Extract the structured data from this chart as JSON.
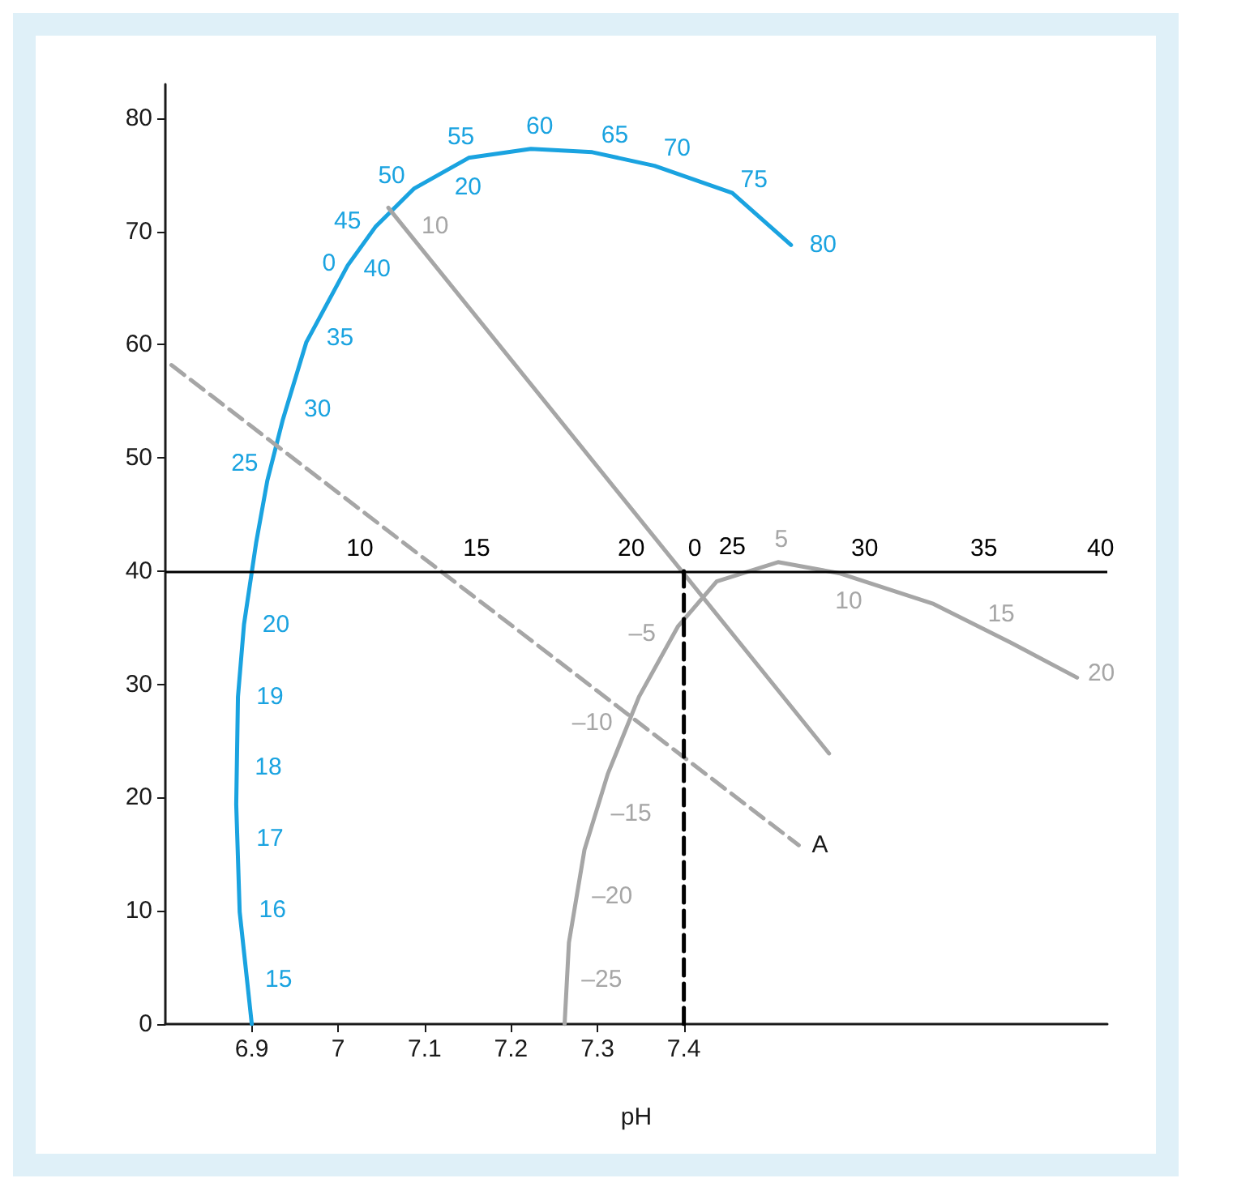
{
  "chart_data": {
    "type": "line",
    "xlabel": "pH",
    "xlim": [
      6.8,
      7.89
    ],
    "ylim": [
      0,
      83
    ],
    "xticks": [
      6.9,
      7,
      7.1,
      7.2,
      7.3,
      7.4
    ],
    "yticks": [
      0,
      10,
      20,
      30,
      40,
      50,
      60,
      70,
      80
    ],
    "grid": false,
    "legend": false,
    "marker": "none",
    "ref_lines": [
      {
        "axis": "y",
        "value": 40,
        "color": "#000000"
      }
    ],
    "annotations": [
      {
        "text": "15",
        "x": 6.894,
        "y": 3.9
      },
      {
        "text": "16",
        "x": 6.887,
        "y": 10.1
      },
      {
        "text": "17",
        "x": 6.884,
        "y": 16.4
      },
      {
        "text": "18",
        "x": 6.882,
        "y": 22.7
      },
      {
        "text": "19",
        "x": 6.884,
        "y": 28.9
      },
      {
        "text": "20",
        "x": 6.891,
        "y": 35.3
      },
      {
        "text": "25",
        "x": 6.918,
        "y": 48.0
      },
      {
        "text": "30",
        "x": 6.939,
        "y": 54.3
      },
      {
        "text": "35",
        "x": 6.965,
        "y": 60.6
      },
      {
        "text": "40",
        "x": 7.008,
        "y": 66.7
      },
      {
        "text": "45",
        "x": 7.025,
        "y": 68.9
      },
      {
        "text": "50",
        "x": 7.076,
        "y": 72.9
      },
      {
        "text": "55",
        "x": 7.142,
        "y": 76.2
      },
      {
        "text": "60",
        "x": 7.219,
        "y": 77.3
      },
      {
        "text": "65",
        "x": 7.294,
        "y": 77.0
      },
      {
        "text": "70",
        "x": 7.366,
        "y": 75.8
      },
      {
        "text": "75",
        "x": 7.447,
        "y": 73.7
      },
      {
        "text": "80",
        "x": 7.524,
        "y": 68.8
      },
      {
        "text": "0",
        "x": 7.02,
        "y": 68.0
      },
      {
        "text": "10",
        "x": 7.075,
        "y": 70.5
      },
      {
        "text": "20",
        "x": 7.124,
        "y": 75.4
      },
      {
        "text": "–25",
        "x": 7.264,
        "y": 3.9
      },
      {
        "text": "–20",
        "x": 7.276,
        "y": 11.3
      },
      {
        "text": "–15",
        "x": 7.298,
        "y": 18.6
      },
      {
        "text": "–10",
        "x": 7.332,
        "y": 25.8
      },
      {
        "text": "–5",
        "x": 7.378,
        "y": 33.0
      },
      {
        "text": "5",
        "x": 7.5,
        "y": 40.8
      },
      {
        "text": "10",
        "x": 7.617,
        "y": 38.9
      },
      {
        "text": "15",
        "x": 7.733,
        "y": 35.4
      },
      {
        "text": "20",
        "x": 7.846,
        "y": 31.0
      },
      {
        "text": "0",
        "x": 7.4,
        "y": 40
      },
      {
        "text": "10",
        "x": 7.011,
        "y": 40
      },
      {
        "text": "15",
        "x": 7.146,
        "y": 40
      },
      {
        "text": "20",
        "x": 7.325,
        "y": 40
      },
      {
        "text": "25",
        "x": 7.456,
        "y": 40
      },
      {
        "text": "30",
        "x": 7.595,
        "y": 40
      },
      {
        "text": "35",
        "x": 7.733,
        "y": 40
      },
      {
        "text": "40",
        "x": 7.868,
        "y": 40
      }
    ],
    "series": [
      {
        "color": "#1aa3e0",
        "x": [
          6.9,
          6.886,
          6.882,
          6.884,
          6.891,
          6.905,
          6.918,
          6.936,
          6.963,
          7.011,
          7.043,
          7.088,
          7.151,
          7.223,
          7.294,
          7.366,
          7.456,
          7.524
        ],
        "values": [
          0,
          9.9,
          19.4,
          28.9,
          35.3,
          42.5,
          48.0,
          53.4,
          60.2,
          67.0,
          70.4,
          73.8,
          76.5,
          77.3,
          77.0,
          75.8,
          73.4,
          68.8
        ]
      },
      {
        "color": "#a6a6a6",
        "x": [
          7.058,
          7.568
        ],
        "values": [
          72.1,
          23.9
        ]
      },
      {
        "name": "A",
        "color": "#a6a6a6",
        "line_style": "dashed",
        "x": [
          6.807,
          7.533
        ],
        "values": [
          58.2,
          15.8
        ]
      },
      {
        "color": "#a6a6a6",
        "x": [
          7.262,
          7.267,
          7.285,
          7.312,
          7.348,
          7.393,
          7.438,
          7.509,
          7.581,
          7.689,
          7.778,
          7.855
        ],
        "values": [
          0,
          7.2,
          15.4,
          22.1,
          28.9,
          35.1,
          39.1,
          40.8,
          39.8,
          37.1,
          33.7,
          30.6
        ]
      },
      {
        "color": "#000000",
        "line_style": "dashed",
        "x": [
          7.4,
          7.4
        ],
        "values": [
          0,
          40
        ]
      }
    ]
  }
}
